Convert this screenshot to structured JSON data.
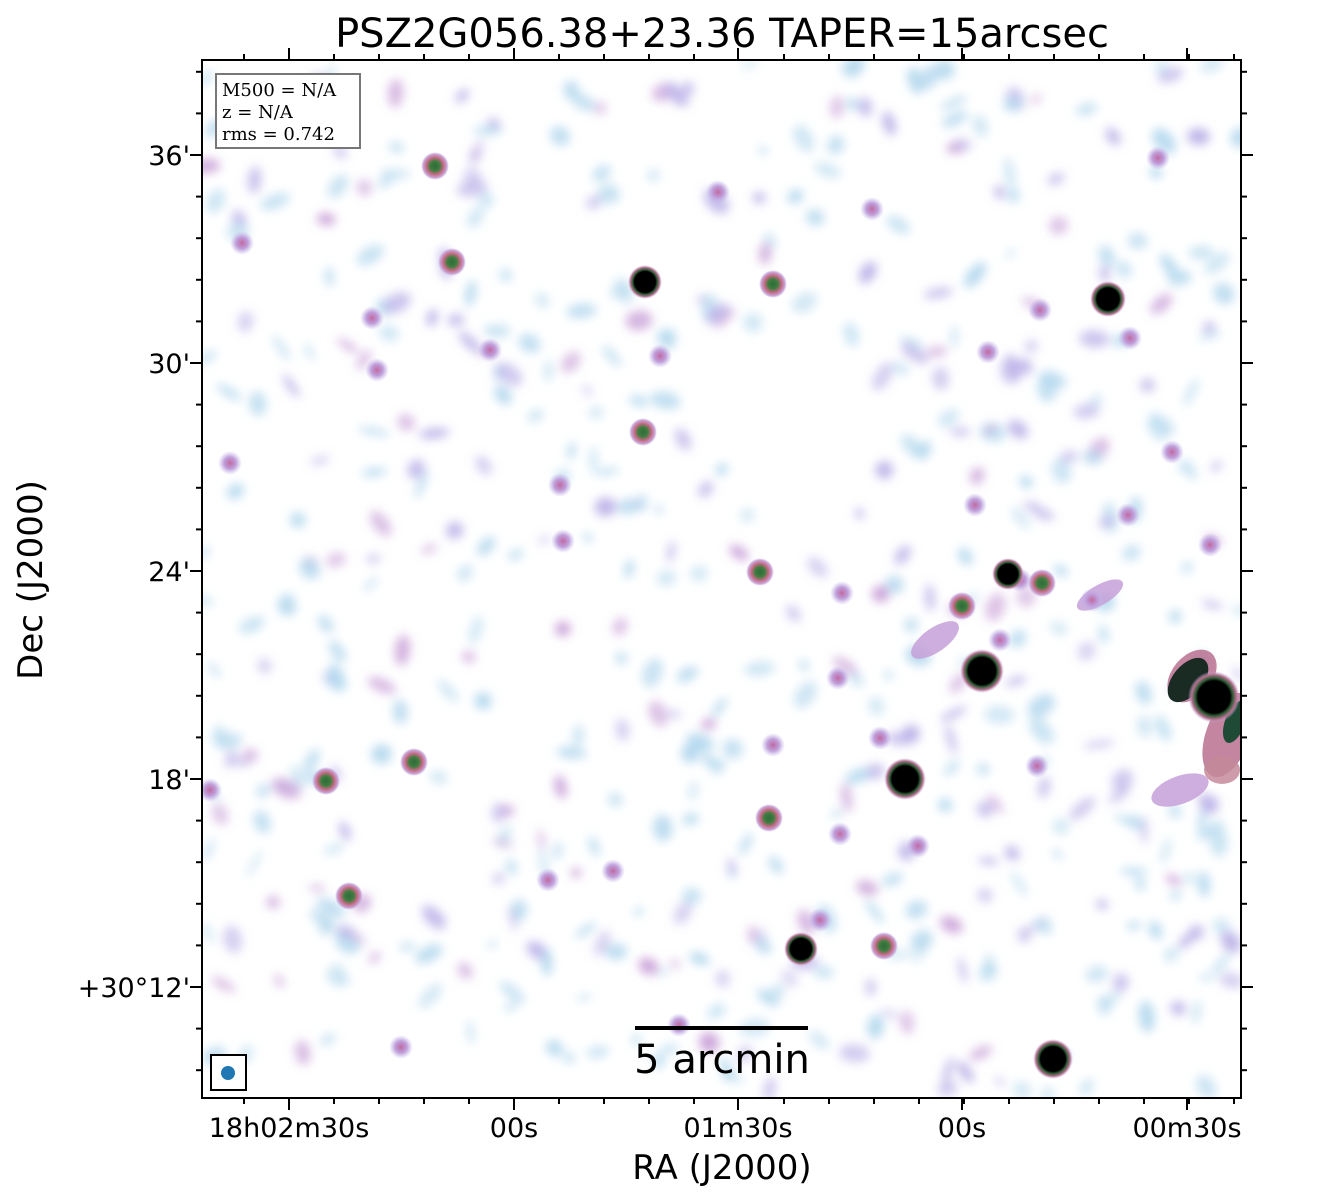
{
  "chart_data": {
    "type": "image",
    "title": "PSZ2G056.38+23.36 TAPER=15arcsec",
    "xlabel": "RA (J2000)",
    "ylabel": "Dec (J2000)",
    "x_ticks": [
      "18h02m30s",
      "00s",
      "01m30s",
      "00s",
      "00m30s"
    ],
    "y_ticks": [
      "36'",
      "30'",
      "24'",
      "18'",
      "+30°12'"
    ],
    "info_box": {
      "m500": "M500 = N/A",
      "z": "z = N/A",
      "rms": "rms = 0.742"
    },
    "scalebar_label": "5 arcmin",
    "beam_color": "#1f77b4",
    "colormap": [
      "#ffffff",
      "#b9dff0",
      "#b9b0e6",
      "#c77ab4",
      "#2f6b3a",
      "#000000"
    ]
  }
}
